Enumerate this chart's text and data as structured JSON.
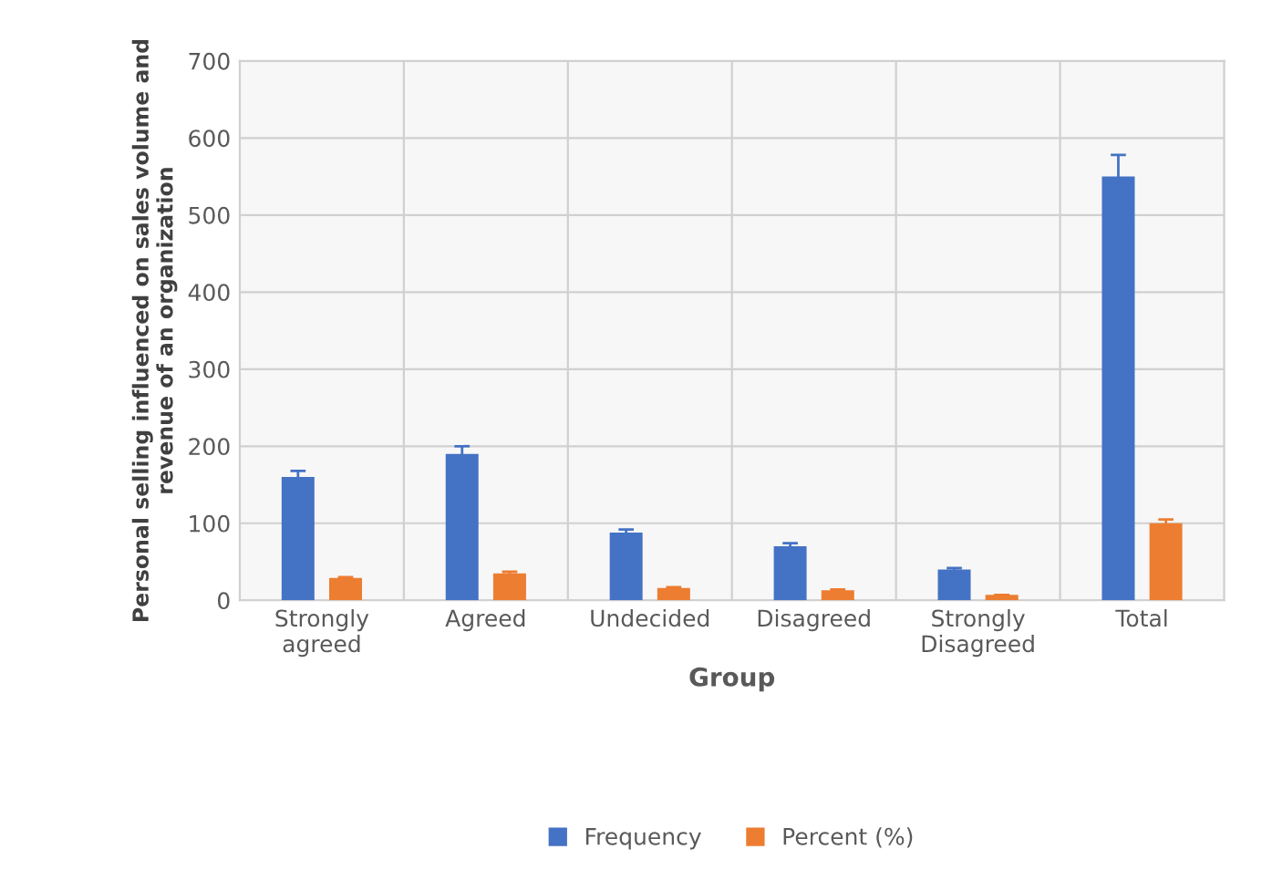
{
  "chart_data": {
    "type": "bar",
    "xlabel": "Group",
    "ylabel": "Personal selling influenced on sales volume and\nrevenue of an organization",
    "categories": [
      "Strongly\nagreed",
      "Agreed",
      "Undecided",
      "Disagreed",
      "Strongly\nDisagreed",
      "Total"
    ],
    "series": [
      {
        "name": "Frequency",
        "color": "#4472c4",
        "values": [
          160,
          190,
          88,
          70,
          40,
          550
        ],
        "errors": [
          8,
          10,
          4,
          4,
          2,
          28
        ]
      },
      {
        "name": "Percent (%)",
        "color": "#ed7d31",
        "values": [
          29,
          35,
          16,
          13,
          7,
          100
        ],
        "errors": [
          1,
          2,
          1,
          1,
          0,
          5
        ]
      }
    ],
    "ylim": [
      0,
      700
    ],
    "yticks": [
      0,
      100,
      200,
      300,
      400,
      500,
      600,
      700
    ],
    "grid": true,
    "legend": "bottom"
  }
}
